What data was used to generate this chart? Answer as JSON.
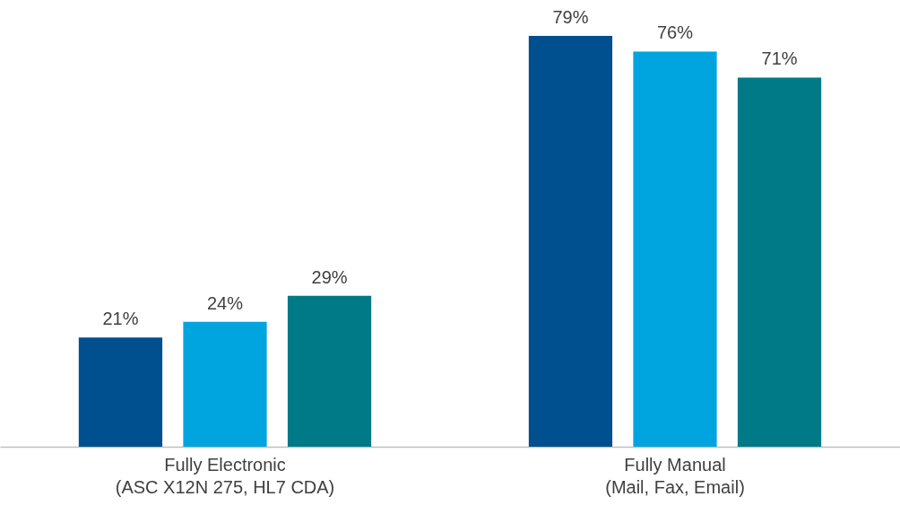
{
  "chart_data": {
    "type": "bar",
    "categories": [
      "Fully Electronic\n(ASC X12N 275, HL7 CDA)",
      "Fully Manual\n(Mail, Fax, Email)"
    ],
    "series": [
      {
        "color": "#00508f",
        "values": [
          21,
          79
        ],
        "value_labels": [
          "21%",
          "79%"
        ]
      },
      {
        "color": "#00a5df",
        "values": [
          24,
          76
        ],
        "value_labels": [
          "24%",
          "76%"
        ]
      },
      {
        "color": "#007a87",
        "values": [
          29,
          71
        ],
        "value_labels": [
          "29%",
          "71%"
        ]
      }
    ]
  }
}
